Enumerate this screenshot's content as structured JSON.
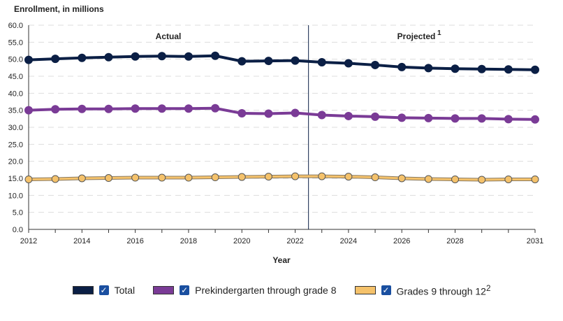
{
  "chart_data": {
    "type": "line",
    "ylabel": "Enrollment, in millions",
    "xlabel": "Year",
    "ylim": [
      0,
      60
    ],
    "yticks": [
      "0.0",
      "5.0",
      "10.0",
      "15.0",
      "20.0",
      "25.0",
      "30.0",
      "35.0",
      "40.0",
      "45.0",
      "50.0",
      "55.0",
      "60.0"
    ],
    "x": [
      2012,
      2013,
      2014,
      2015,
      2016,
      2017,
      2018,
      2019,
      2020,
      2021,
      2022,
      2023,
      2024,
      2025,
      2026,
      2027,
      2028,
      2029,
      2030,
      2031
    ],
    "xtick_labels": [
      "2012",
      "2014",
      "2016",
      "2018",
      "2020",
      "2022",
      "2024",
      "2026",
      "2028",
      "2031"
    ],
    "annotations": {
      "actual": "Actual",
      "projected": "Projected",
      "projected_sup": "1"
    },
    "series": [
      {
        "name": "Total",
        "color": "#0b1f45",
        "values": [
          49.8,
          50.1,
          50.4,
          50.6,
          50.8,
          50.9,
          50.8,
          51.0,
          49.4,
          49.5,
          49.6,
          49.1,
          48.8,
          48.3,
          47.7,
          47.4,
          47.2,
          47.1,
          47.0,
          46.9
        ]
      },
      {
        "name": "Prekindergarten through grade 8",
        "color": "#7a3b96",
        "values": [
          35.0,
          35.3,
          35.4,
          35.4,
          35.5,
          35.5,
          35.5,
          35.6,
          34.1,
          34.0,
          34.2,
          33.6,
          33.3,
          33.1,
          32.8,
          32.7,
          32.6,
          32.6,
          32.4,
          32.3
        ]
      },
      {
        "name": "Grades 9 through 12",
        "sup": "2",
        "color": "#f5c26b",
        "values": [
          14.7,
          14.8,
          15.0,
          15.1,
          15.2,
          15.2,
          15.2,
          15.3,
          15.4,
          15.5,
          15.6,
          15.6,
          15.5,
          15.3,
          15.0,
          14.8,
          14.7,
          14.6,
          14.7,
          14.7
        ]
      }
    ]
  },
  "legend": {
    "check": "✓"
  }
}
